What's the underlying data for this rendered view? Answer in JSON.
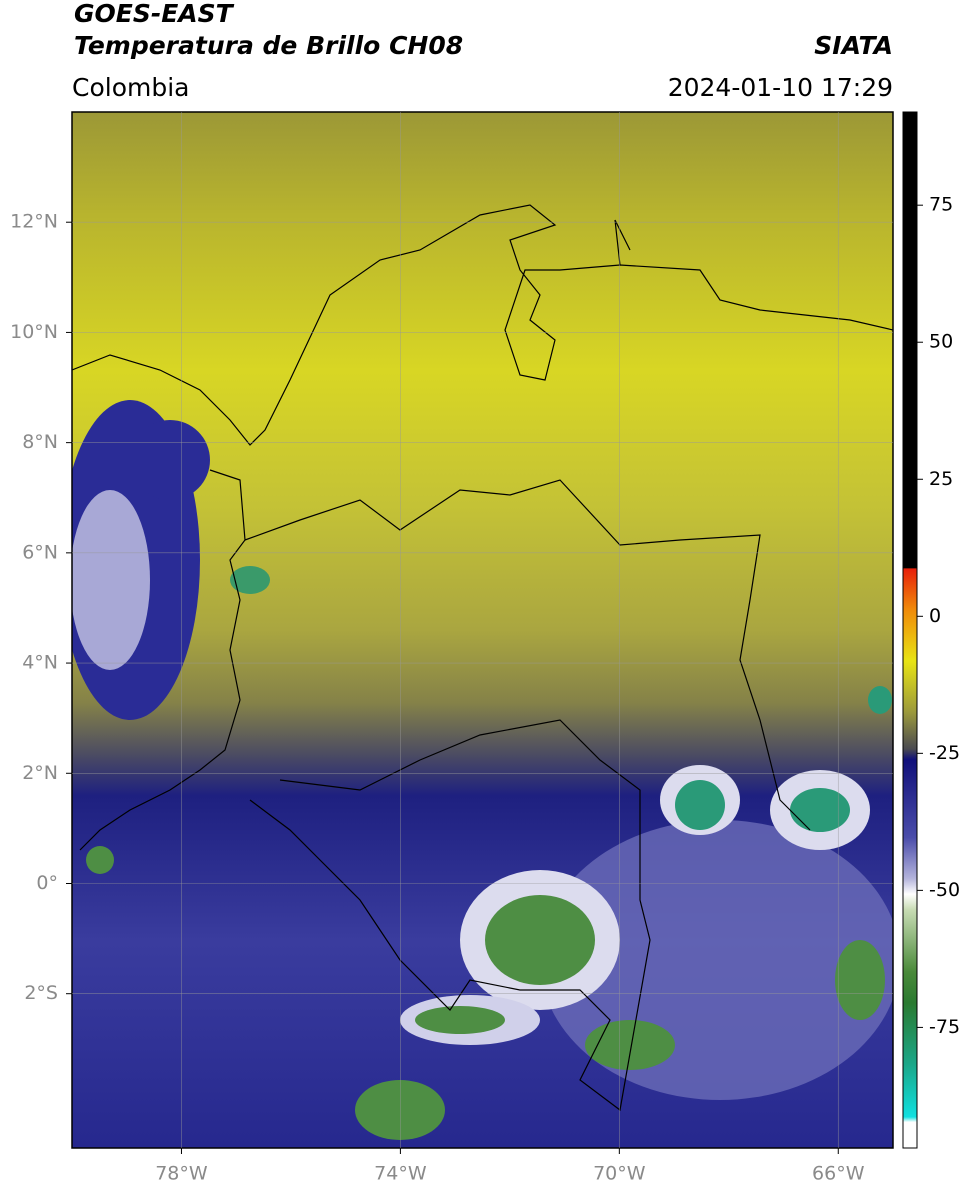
{
  "header": {
    "title": "GOES-EAST",
    "subtitle": "Temperatura de Brillo CH08",
    "source": "SIATA",
    "region": "Colombia",
    "timestamp": "2024-01-10 17:29"
  },
  "map": {
    "lon_range": [
      -80,
      -65
    ],
    "lat_range": [
      -4.8,
      14
    ],
    "lon_ticks": [
      {
        "value": -78,
        "label": "78°W"
      },
      {
        "value": -74,
        "label": "74°W"
      },
      {
        "value": -70,
        "label": "70°W"
      },
      {
        "value": -66,
        "label": "66°W"
      }
    ],
    "lat_ticks": [
      {
        "value": 12,
        "label": "12°N"
      },
      {
        "value": 10,
        "label": "10°N"
      },
      {
        "value": 8,
        "label": "8°N"
      },
      {
        "value": 6,
        "label": "6°N"
      },
      {
        "value": 4,
        "label": "4°N"
      },
      {
        "value": 2,
        "label": "2°N"
      },
      {
        "value": 0,
        "label": "0°"
      },
      {
        "value": -2,
        "label": "2°S"
      }
    ]
  },
  "colorbar": {
    "range": [
      -97,
      92
    ],
    "ticks": [
      75,
      50,
      25,
      0,
      -25,
      -50,
      -75
    ]
  }
}
